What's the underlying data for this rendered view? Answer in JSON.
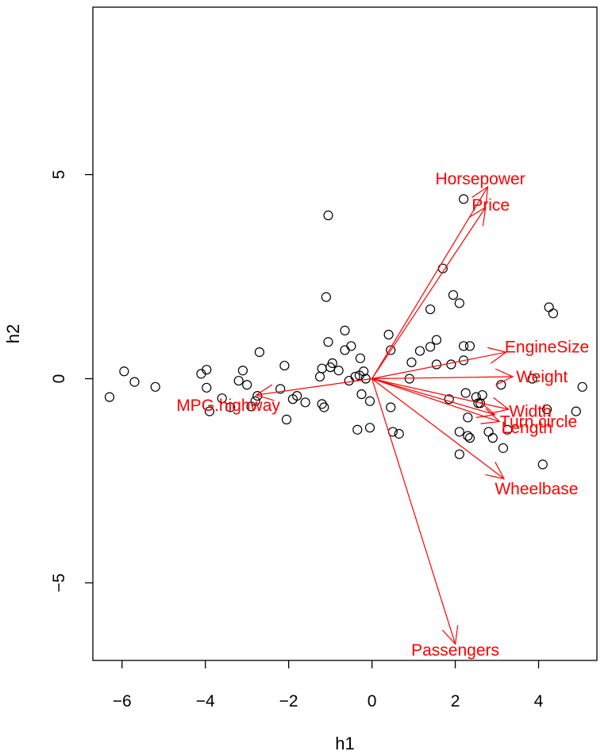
{
  "chart_data": {
    "type": "scatter",
    "subtype": "biplot",
    "title": "",
    "xlabel": "h1",
    "ylabel": "h2",
    "xlim": [
      -6.7,
      5.4
    ],
    "ylim": [
      -6.9,
      9.1
    ],
    "x_ticks": [
      -6,
      -4,
      -2,
      0,
      2,
      4
    ],
    "x_tick_labels": [
      "−6",
      "−4",
      "−2",
      "0",
      "2",
      "4"
    ],
    "y_ticks": [
      -5,
      0,
      5
    ],
    "y_tick_labels": [
      "−5",
      "0",
      "5"
    ],
    "arrow_color": "#ff0000",
    "point_color": "#000000",
    "points": [
      {
        "x": -6.3,
        "y": -0.45
      },
      {
        "x": -5.95,
        "y": 0.18
      },
      {
        "x": -5.7,
        "y": -0.08
      },
      {
        "x": -5.2,
        "y": -0.2
      },
      {
        "x": -4.1,
        "y": 0.12
      },
      {
        "x": -3.97,
        "y": 0.22
      },
      {
        "x": -3.97,
        "y": -0.22
      },
      {
        "x": -3.9,
        "y": -0.8
      },
      {
        "x": -3.6,
        "y": -0.48
      },
      {
        "x": -3.4,
        "y": -0.7
      },
      {
        "x": -3.2,
        "y": -0.05
      },
      {
        "x": -3.1,
        "y": 0.2
      },
      {
        "x": -3.0,
        "y": -0.15
      },
      {
        "x": -2.9,
        "y": -0.68
      },
      {
        "x": -2.8,
        "y": -0.55
      },
      {
        "x": -2.75,
        "y": -0.42
      },
      {
        "x": -2.7,
        "y": 0.65
      },
      {
        "x": -2.2,
        "y": -0.25
      },
      {
        "x": -2.1,
        "y": 0.32
      },
      {
        "x": -2.05,
        "y": -1.0
      },
      {
        "x": -1.9,
        "y": -0.5
      },
      {
        "x": -1.8,
        "y": -0.42
      },
      {
        "x": -1.6,
        "y": -0.58
      },
      {
        "x": -1.25,
        "y": 0.05
      },
      {
        "x": -1.2,
        "y": 0.25
      },
      {
        "x": -1.15,
        "y": -0.7
      },
      {
        "x": -1.2,
        "y": -0.62
      },
      {
        "x": -1.1,
        "y": 2.0
      },
      {
        "x": -1.05,
        "y": 0.9
      },
      {
        "x": -1.0,
        "y": 0.28
      },
      {
        "x": -0.95,
        "y": 0.38
      },
      {
        "x": -1.05,
        "y": 4.0
      },
      {
        "x": -0.8,
        "y": 0.2
      },
      {
        "x": -0.65,
        "y": 0.7
      },
      {
        "x": -0.65,
        "y": 1.18
      },
      {
        "x": -0.5,
        "y": 0.8
      },
      {
        "x": -0.4,
        "y": 0.05
      },
      {
        "x": -0.3,
        "y": 0.08
      },
      {
        "x": -0.35,
        "y": -1.25
      },
      {
        "x": -0.28,
        "y": 0.5
      },
      {
        "x": -0.25,
        "y": -0.38
      },
      {
        "x": -0.2,
        "y": 0.18
      },
      {
        "x": -0.15,
        "y": 0.0
      },
      {
        "x": -0.05,
        "y": -1.2
      },
      {
        "x": -0.05,
        "y": -0.55
      },
      {
        "x": -0.55,
        "y": -0.05
      },
      {
        "x": 0.4,
        "y": 1.08
      },
      {
        "x": 0.45,
        "y": 0.7
      },
      {
        "x": 0.45,
        "y": -0.7
      },
      {
        "x": 0.5,
        "y": -1.3
      },
      {
        "x": 0.65,
        "y": -1.35
      },
      {
        "x": 0.95,
        "y": 0.4
      },
      {
        "x": 0.9,
        "y": 0.0
      },
      {
        "x": 1.15,
        "y": 0.68
      },
      {
        "x": 1.4,
        "y": 0.78
      },
      {
        "x": 1.4,
        "y": 1.7
      },
      {
        "x": 1.55,
        "y": 0.95
      },
      {
        "x": 1.55,
        "y": 0.35
      },
      {
        "x": 1.7,
        "y": 2.7
      },
      {
        "x": 1.85,
        "y": -0.5
      },
      {
        "x": 1.9,
        "y": 0.35
      },
      {
        "x": 1.95,
        "y": 2.05
      },
      {
        "x": 2.1,
        "y": 1.85
      },
      {
        "x": 2.2,
        "y": 4.4
      },
      {
        "x": 2.1,
        "y": -1.3
      },
      {
        "x": 2.1,
        "y": -1.85
      },
      {
        "x": 2.2,
        "y": 0.8
      },
      {
        "x": 2.2,
        "y": 0.45
      },
      {
        "x": 2.35,
        "y": 0.8
      },
      {
        "x": 2.25,
        "y": -0.35
      },
      {
        "x": 2.3,
        "y": -0.95
      },
      {
        "x": 2.3,
        "y": -1.4
      },
      {
        "x": 2.35,
        "y": -1.45
      },
      {
        "x": 2.5,
        "y": -0.45
      },
      {
        "x": 2.55,
        "y": -0.6
      },
      {
        "x": 2.6,
        "y": -0.6
      },
      {
        "x": 2.65,
        "y": -0.4
      },
      {
        "x": 2.8,
        "y": -1.3
      },
      {
        "x": 2.9,
        "y": -1.45
      },
      {
        "x": 3.1,
        "y": -0.15
      },
      {
        "x": 3.15,
        "y": -1.7
      },
      {
        "x": 3.25,
        "y": -1.25
      },
      {
        "x": 3.85,
        "y": 0.0
      },
      {
        "x": 4.1,
        "y": -2.1
      },
      {
        "x": 4.2,
        "y": -0.75
      },
      {
        "x": 4.25,
        "y": 1.75
      },
      {
        "x": 4.35,
        "y": 1.6
      },
      {
        "x": 4.9,
        "y": -0.8
      },
      {
        "x": 5.05,
        "y": -0.2
      }
    ],
    "variables": [
      {
        "name": "Horsepower",
        "x": 2.78,
        "y": 4.7,
        "lx": 2.6,
        "ly": 4.9
      },
      {
        "name": "Price",
        "x": 2.73,
        "y": 4.2,
        "lx": 2.85,
        "ly": 4.25
      },
      {
        "name": "EngineSize",
        "x": 3.22,
        "y": 0.65,
        "lx": 4.2,
        "ly": 0.78
      },
      {
        "name": "Weight",
        "x": 3.38,
        "y": 0.05,
        "lx": 4.08,
        "ly": 0.05
      },
      {
        "name": "Width",
        "x": 3.28,
        "y": -0.75,
        "lx": 3.8,
        "ly": -0.8
      },
      {
        "name": "Turn.circle",
        "x": 2.95,
        "y": -0.88,
        "lx": 4.0,
        "ly": -1.05
      },
      {
        "name": "Length",
        "x": 3.06,
        "y": -1.05,
        "lx": 3.72,
        "ly": -1.2
      },
      {
        "name": "Wheelbase",
        "x": 3.17,
        "y": -2.45,
        "lx": 3.95,
        "ly": -2.7
      },
      {
        "name": "Passengers",
        "x": 2.0,
        "y": -6.5,
        "lx": 2.0,
        "ly": -6.65
      },
      {
        "name": "MPG.highway",
        "x": -2.78,
        "y": -0.4,
        "lx": -3.45,
        "ly": -0.65
      }
    ]
  }
}
